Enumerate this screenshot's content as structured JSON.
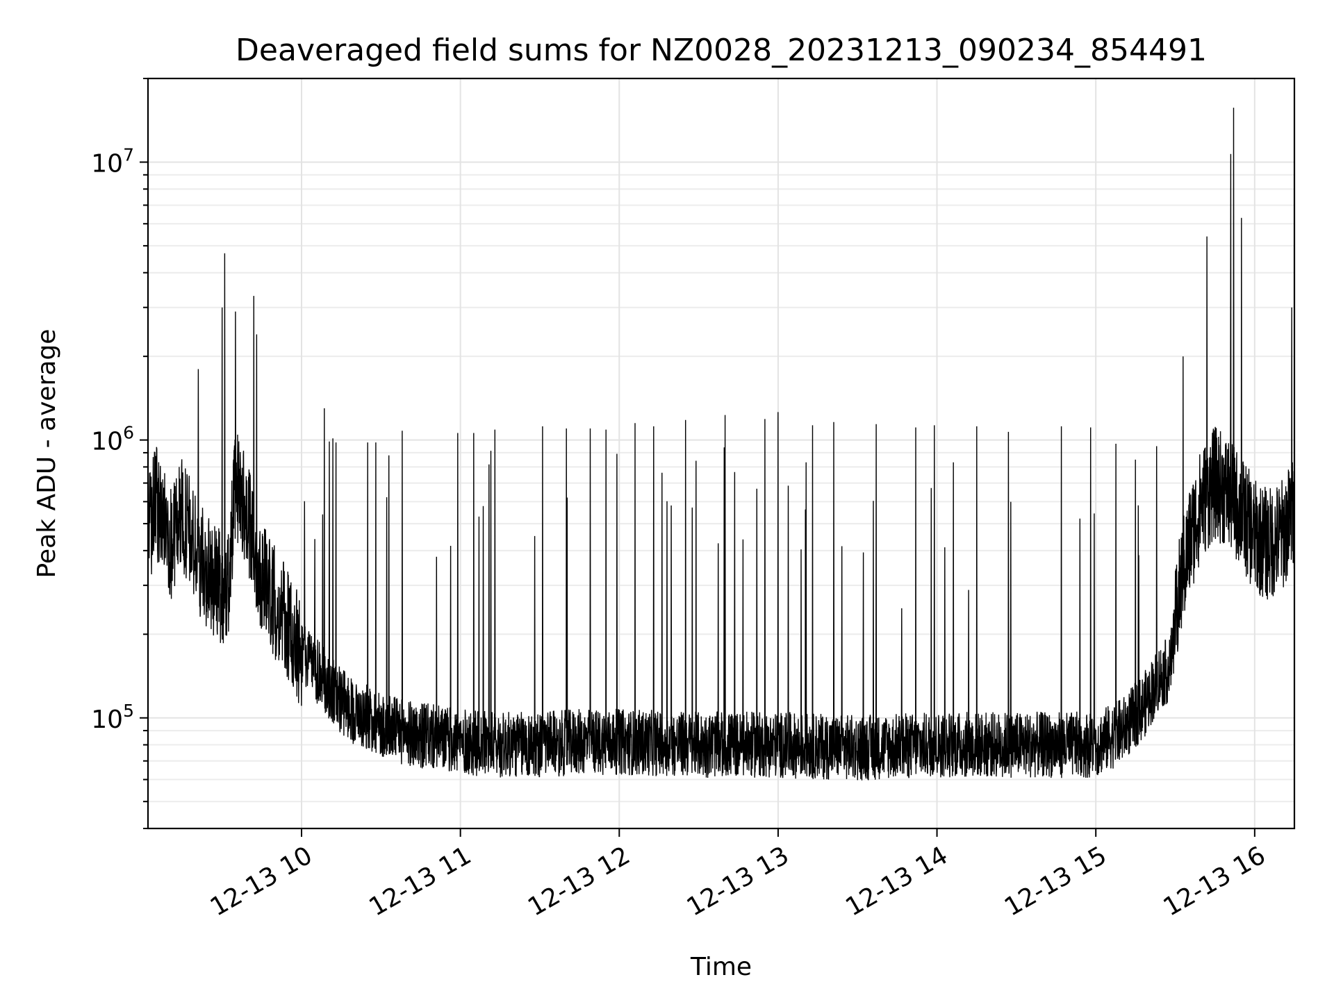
{
  "chart_data": {
    "type": "line",
    "title": "Deaveraged field sums for NZ0028_20231213_090234_854491",
    "xlabel": "Time",
    "ylabel": "Peak ADU - average",
    "yscale": "log",
    "grid": "on (major and minor)",
    "legend": "none",
    "series_color": "#000000",
    "xlim": [
      "2023-12-13 09:02",
      "2023-12-13 16:15"
    ],
    "ylim": [
      40000,
      20000000
    ],
    "x_ticks": [
      {
        "value": "2023-12-13 10:00",
        "label": "12-13 10"
      },
      {
        "value": "2023-12-13 11:00",
        "label": "12-13 11"
      },
      {
        "value": "2023-12-13 12:00",
        "label": "12-13 12"
      },
      {
        "value": "2023-12-13 13:00",
        "label": "12-13 13"
      },
      {
        "value": "2023-12-13 14:00",
        "label": "12-13 14"
      },
      {
        "value": "2023-12-13 15:00",
        "label": "12-13 15"
      },
      {
        "value": "2023-12-13 16:00",
        "label": "12-13 16"
      }
    ],
    "y_ticks": [
      {
        "value": 100000,
        "base": "10",
        "exp": "5"
      },
      {
        "value": 1000000,
        "base": "10",
        "exp": "6"
      },
      {
        "value": 10000000,
        "base": "10",
        "exp": "7"
      }
    ],
    "series": [
      {
        "points": [
          [
            "2023-12-13 09:02",
            450000
          ],
          [
            "2023-12-13 09:05",
            600000
          ],
          [
            "2023-12-13 09:08",
            500000
          ],
          [
            "2023-12-13 09:11",
            420000
          ],
          [
            "2023-12-13 09:14",
            550000
          ],
          [
            "2023-12-13 09:17",
            480000
          ],
          [
            "2023-12-13 09:20",
            400000
          ],
          [
            "2023-12-13 09:23",
            350000
          ],
          [
            "2023-12-13 09:26",
            320000
          ],
          [
            "2023-12-13 09:29",
            300000
          ],
          [
            "2023-12-13 09:32",
            280000
          ],
          [
            "2023-12-13 09:35",
            700000
          ],
          [
            "2023-12-13 09:38",
            600000
          ],
          [
            "2023-12-13 09:41",
            450000
          ],
          [
            "2023-12-13 09:44",
            350000
          ],
          [
            "2023-12-13 09:47",
            300000
          ],
          [
            "2023-12-13 09:50",
            260000
          ],
          [
            "2023-12-13 09:53",
            230000
          ],
          [
            "2023-12-13 09:56",
            200000
          ],
          [
            "2023-12-13 10:00",
            170000
          ],
          [
            "2023-12-13 10:05",
            150000
          ],
          [
            "2023-12-13 10:10",
            130000
          ],
          [
            "2023-12-13 10:15",
            115000
          ],
          [
            "2023-12-13 10:20",
            105000
          ],
          [
            "2023-12-13 10:25",
            100000
          ],
          [
            "2023-12-13 10:30",
            95000
          ],
          [
            "2023-12-13 10:40",
            88000
          ],
          [
            "2023-12-13 10:50",
            85000
          ],
          [
            "2023-12-13 11:00",
            82000
          ],
          [
            "2023-12-13 11:15",
            80000
          ],
          [
            "2023-12-13 11:30",
            80000
          ],
          [
            "2023-12-13 11:45",
            82000
          ],
          [
            "2023-12-13 12:00",
            82000
          ],
          [
            "2023-12-13 12:30",
            80000
          ],
          [
            "2023-12-13 13:00",
            80000
          ],
          [
            "2023-12-13 13:30",
            78000
          ],
          [
            "2023-12-13 14:00",
            80000
          ],
          [
            "2023-12-13 14:30",
            80000
          ],
          [
            "2023-12-13 14:45",
            80000
          ],
          [
            "2023-12-13 15:00",
            80000
          ],
          [
            "2023-12-13 15:10",
            90000
          ],
          [
            "2023-12-13 15:18",
            110000
          ],
          [
            "2023-12-13 15:24",
            140000
          ],
          [
            "2023-12-13 15:28",
            150000
          ],
          [
            "2023-12-13 15:32",
            300000
          ],
          [
            "2023-12-13 15:36",
            450000
          ],
          [
            "2023-12-13 15:40",
            600000
          ],
          [
            "2023-12-13 15:45",
            700000
          ],
          [
            "2023-12-13 15:50",
            650000
          ],
          [
            "2023-12-13 15:55",
            550000
          ],
          [
            "2023-12-13 16:00",
            450000
          ],
          [
            "2023-12-13 16:05",
            420000
          ],
          [
            "2023-12-13 16:10",
            450000
          ],
          [
            "2023-12-13 16:15",
            550000
          ]
        ],
        "peaks": [
          [
            "2023-12-13 09:21",
            1800000
          ],
          [
            "2023-12-13 09:30",
            3000000
          ],
          [
            "2023-12-13 09:31",
            4700000
          ],
          [
            "2023-12-13 09:35",
            2900000
          ],
          [
            "2023-12-13 09:42",
            3300000
          ],
          [
            "2023-12-13 09:43",
            2400000
          ],
          [
            "2023-12-13 10:05",
            440000
          ],
          [
            "2023-12-13 10:08",
            540000
          ],
          [
            "2023-12-13 10:13",
            980000
          ],
          [
            "2023-12-13 10:25",
            980000
          ],
          [
            "2023-12-13 10:28",
            980000
          ],
          [
            "2023-12-13 10:33",
            880000
          ],
          [
            "2023-12-13 10:38",
            1080000
          ],
          [
            "2023-12-13 10:51",
            380000
          ],
          [
            "2023-12-13 10:59",
            1060000
          ],
          [
            "2023-12-13 11:05",
            1060000
          ],
          [
            "2023-12-13 11:07",
            530000
          ],
          [
            "2023-12-13 11:13",
            1090000
          ],
          [
            "2023-12-13 11:31",
            1120000
          ],
          [
            "2023-12-13 11:40",
            1100000
          ],
          [
            "2023-12-13 11:49",
            1100000
          ],
          [
            "2023-12-13 11:55",
            1090000
          ],
          [
            "2023-12-13 12:06",
            1150000
          ],
          [
            "2023-12-13 12:13",
            1120000
          ],
          [
            "2023-12-13 12:25",
            1180000
          ],
          [
            "2023-12-13 12:40",
            1230000
          ],
          [
            "2023-12-13 12:55",
            1190000
          ],
          [
            "2023-12-13 13:00",
            1260000
          ],
          [
            "2023-12-13 13:13",
            1130000
          ],
          [
            "2023-12-13 13:21",
            1160000
          ],
          [
            "2023-12-13 13:37",
            1140000
          ],
          [
            "2023-12-13 13:52",
            1110000
          ],
          [
            "2023-12-13 13:59",
            1130000
          ],
          [
            "2023-12-13 14:15",
            1120000
          ],
          [
            "2023-12-13 14:27",
            1070000
          ],
          [
            "2023-12-13 14:47",
            1120000
          ],
          [
            "2023-12-13 14:58",
            1110000
          ],
          [
            "2023-12-13 15:15",
            850000
          ],
          [
            "2023-12-13 15:23",
            950000
          ],
          [
            "2023-12-13 15:33",
            2000000
          ],
          [
            "2023-12-13 15:42",
            5400000
          ],
          [
            "2023-12-13 15:51",
            10700000
          ],
          [
            "2023-12-13 15:52",
            15700000
          ],
          [
            "2023-12-13 15:55",
            6300000
          ],
          [
            "2023-12-13 16:14",
            3000000
          ]
        ]
      }
    ]
  }
}
